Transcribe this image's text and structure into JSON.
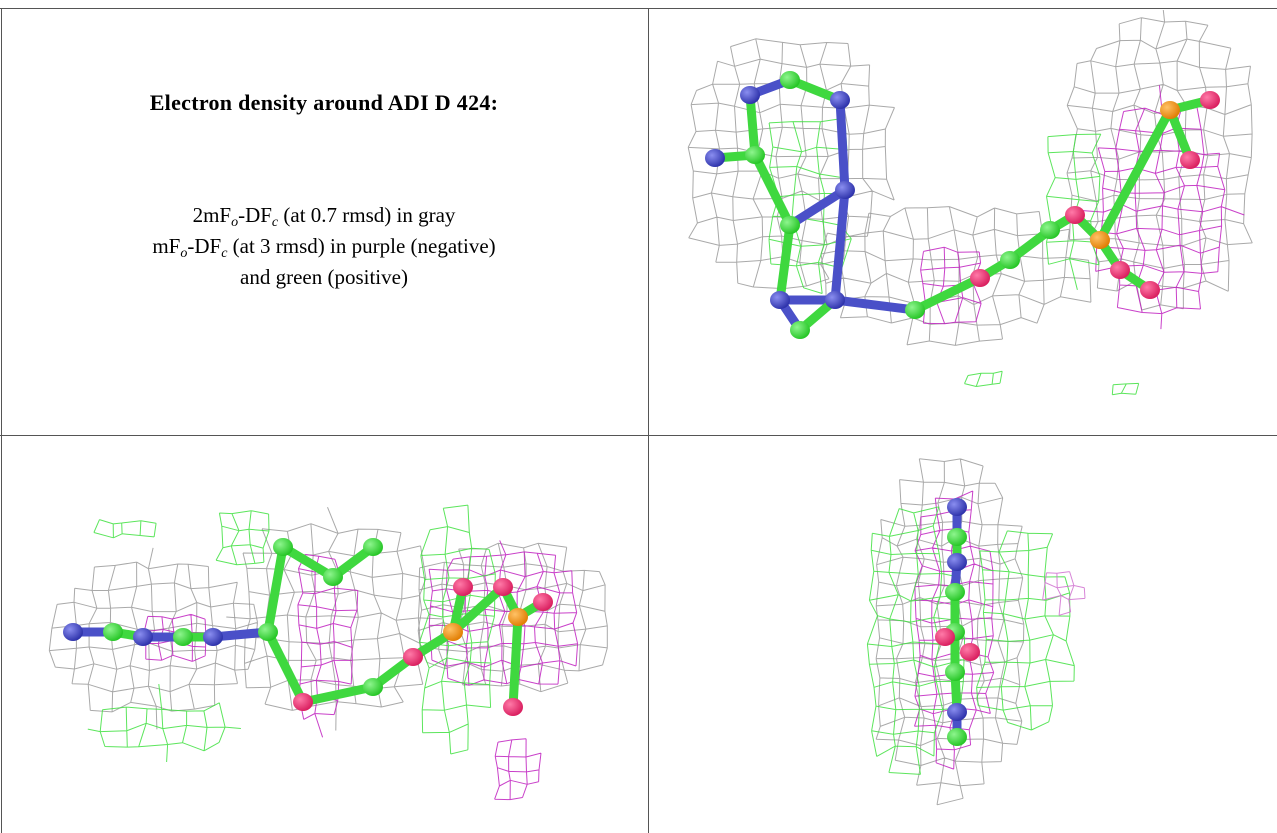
{
  "header": {
    "title": "Electron density around ADI D 424:"
  },
  "legend": {
    "line1": [
      "2mF",
      "o",
      "-DF",
      "c",
      " (at 0.7 rmsd) in gray"
    ],
    "line2": [
      "mF",
      "o",
      "-DF",
      "c",
      " (at 3 rmsd) in purple (negative)"
    ],
    "line3": "and green (positive)"
  }
}
